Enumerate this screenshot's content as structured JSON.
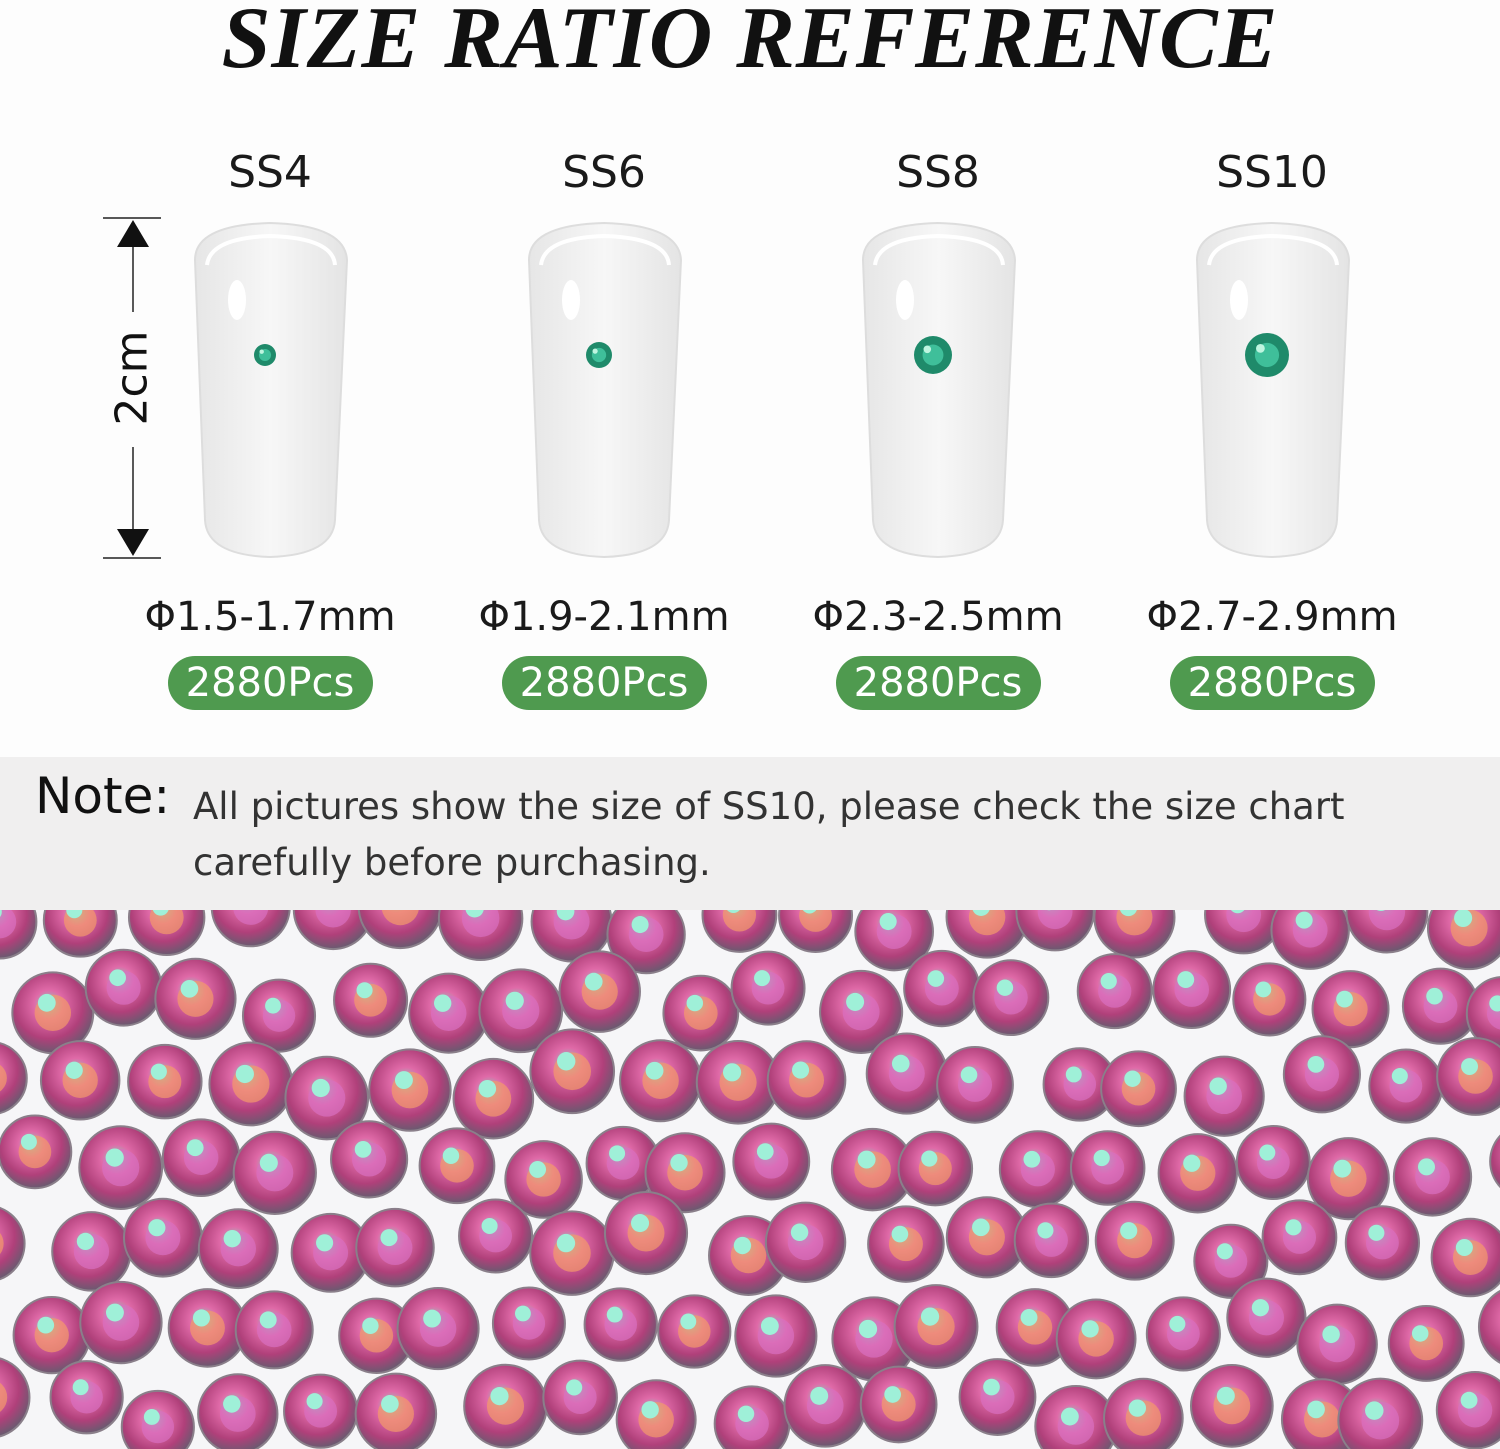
{
  "title": "SIZE RATIO REFERENCE",
  "measure_label": "2cm",
  "sizes": [
    {
      "label": "SS4",
      "diameter": "Φ1.5-1.7mm",
      "count": "2880Pcs"
    },
    {
      "label": "SS6",
      "diameter": "Φ1.9-2.1mm",
      "count": "2880Pcs"
    },
    {
      "label": "SS8",
      "diameter": "Φ2.3-2.5mm",
      "count": "2880Pcs"
    },
    {
      "label": "SS10",
      "diameter": "Φ2.7-2.9mm",
      "count": "2880Pcs"
    }
  ],
  "note": {
    "key": "Note:",
    "text": "All pictures show the size of SS10, please check the size chart carefully before purchasing."
  },
  "colors": {
    "badge": "#4f9a4f",
    "gem": "#1f8a6a",
    "note_band": "#f0efef"
  }
}
